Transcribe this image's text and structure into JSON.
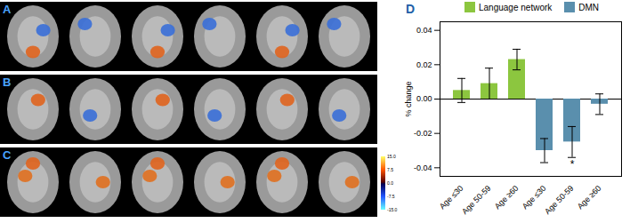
{
  "panel_labels": [
    "A",
    "B",
    "C",
    "D"
  ],
  "colorbar": {
    "range": [
      -15,
      15
    ],
    "ticks": [
      {
        "value": 15,
        "label": "15.0"
      },
      {
        "value": 7.5,
        "label": "7.5"
      },
      {
        "value": 0,
        "label": "0.0"
      },
      {
        "value": -7.5,
        "label": "-7.5"
      },
      {
        "value": -15,
        "label": "-15.0"
      }
    ]
  },
  "chart_data": {
    "type": "bar",
    "y_label": "% change",
    "categories": [
      "Age ≤30",
      "Age 50-59",
      "Age ≥60",
      "Age ≤30",
      "Age 50-59",
      "Age ≥60"
    ],
    "series": [
      {
        "name": "Language network",
        "color": "#8cc63f",
        "values": [
          0.005,
          0.009,
          0.023,
          null,
          null,
          null
        ],
        "errors": [
          0.007,
          0.009,
          0.006,
          null,
          null,
          null
        ]
      },
      {
        "name": "DMN",
        "color": "#5a8fad",
        "values": [
          null,
          null,
          null,
          -0.03,
          -0.025,
          -0.003
        ],
        "errors": [
          null,
          null,
          null,
          0.007,
          0.009,
          0.006
        ]
      }
    ],
    "annotations": [
      {
        "text": "*",
        "category_index": 4,
        "series": "DMN"
      }
    ],
    "ylim": [
      -0.045,
      0.045
    ],
    "yticks": [
      {
        "value": 0.04,
        "label": "0.04"
      },
      {
        "value": 0.02,
        "label": "0.02"
      },
      {
        "value": 0,
        "label": "0.00"
      },
      {
        "value": -0.02,
        "label": "-0.02"
      },
      {
        "value": -0.04,
        "label": "-0.04"
      }
    ],
    "legend": "top"
  }
}
